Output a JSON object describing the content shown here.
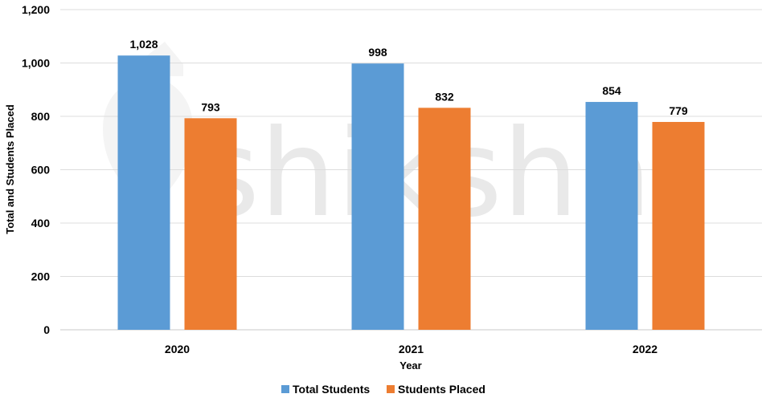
{
  "chart_data": {
    "type": "bar",
    "categories": [
      "2020",
      "2021",
      "2022"
    ],
    "series": [
      {
        "name": "Total Students",
        "values": [
          1028,
          998,
          854
        ],
        "color": "#5b9bd5"
      },
      {
        "name": "Students Placed",
        "values": [
          793,
          832,
          779
        ],
        "color": "#ed7d31"
      }
    ],
    "data_labels": [
      [
        "1,028",
        "998",
        "854"
      ],
      [
        "793",
        "832",
        "779"
      ]
    ],
    "xlabel": "Year",
    "ylabel": "Total and Students Placed",
    "ylim": [
      0,
      1200
    ],
    "yticks": [
      0,
      200,
      400,
      600,
      800,
      1000,
      1200
    ],
    "ytick_labels": [
      "0",
      "200",
      "400",
      "600",
      "800",
      "1,000",
      "1,200"
    ],
    "grid": true,
    "legend_position": "bottom-center",
    "watermark": "shiksha"
  }
}
